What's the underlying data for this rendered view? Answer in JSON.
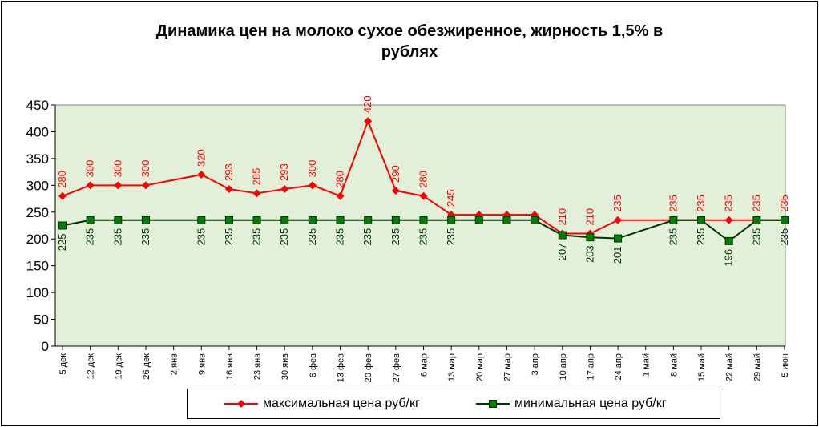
{
  "chart_data": {
    "type": "line",
    "title": "Динамика цен на молоко сухое обезжиренное, жирность 1,5%  в рублях",
    "title_lines": [
      "Динамика цен на молоко сухое обезжиренное, жирность 1,5%  в",
      "рублях"
    ],
    "categories": [
      "5 дек",
      "12 дек",
      "19 дек",
      "26 дек",
      "2 янв",
      "9 янв",
      "16 янв",
      "23 янв",
      "30 янв",
      "6 фев",
      "13 фев",
      "20 фев",
      "27 фев",
      "6 мар",
      "13 мар",
      "20 мар",
      "27 мар",
      "3 апр",
      "10 апр",
      "17 апр",
      "24 апр",
      "1 май",
      "8 май",
      "15 май",
      "22 май",
      "29 май",
      "5 июн"
    ],
    "ylim": [
      0,
      450
    ],
    "yticks": [
      0,
      50,
      100,
      150,
      200,
      250,
      300,
      350,
      400,
      450
    ],
    "grid": false,
    "legend_position": "bottom",
    "series": [
      {
        "name": "максимальная цена руб/кг",
        "color": "#ff0000",
        "marker": "diamond",
        "values": [
          280,
          300,
          300,
          300,
          null,
          320,
          293,
          285,
          293,
          300,
          280,
          420,
          290,
          280,
          245,
          245,
          245,
          245,
          210,
          210,
          235,
          null,
          235,
          235,
          235,
          235,
          235
        ],
        "labels": [
          "280",
          "300",
          "300",
          "300",
          "",
          "320",
          "293",
          "285",
          "293",
          "300",
          "280",
          "420",
          "290",
          "280",
          "245",
          "",
          "",
          "",
          "210",
          "210",
          "235",
          "",
          "235",
          "235",
          "235",
          "235",
          "235"
        ]
      },
      {
        "name": "минимальная цена руб/кг",
        "color": "#006400",
        "marker": "square",
        "values": [
          225,
          235,
          235,
          235,
          null,
          235,
          235,
          235,
          235,
          235,
          235,
          235,
          235,
          235,
          235,
          235,
          235,
          235,
          207,
          203,
          201,
          null,
          235,
          235,
          196,
          235,
          235
        ],
        "labels": [
          "225",
          "235",
          "235",
          "235",
          "",
          "235",
          "235",
          "235",
          "235",
          "235",
          "235",
          "235",
          "235",
          "235",
          "235",
          "",
          "",
          "",
          "207",
          "203",
          "201",
          "",
          "235",
          "235",
          "196",
          "235",
          "235"
        ]
      }
    ]
  },
  "legend": {
    "max_label": "максимальная цена руб/кг",
    "min_label": "минимальная цена руб/кг"
  }
}
